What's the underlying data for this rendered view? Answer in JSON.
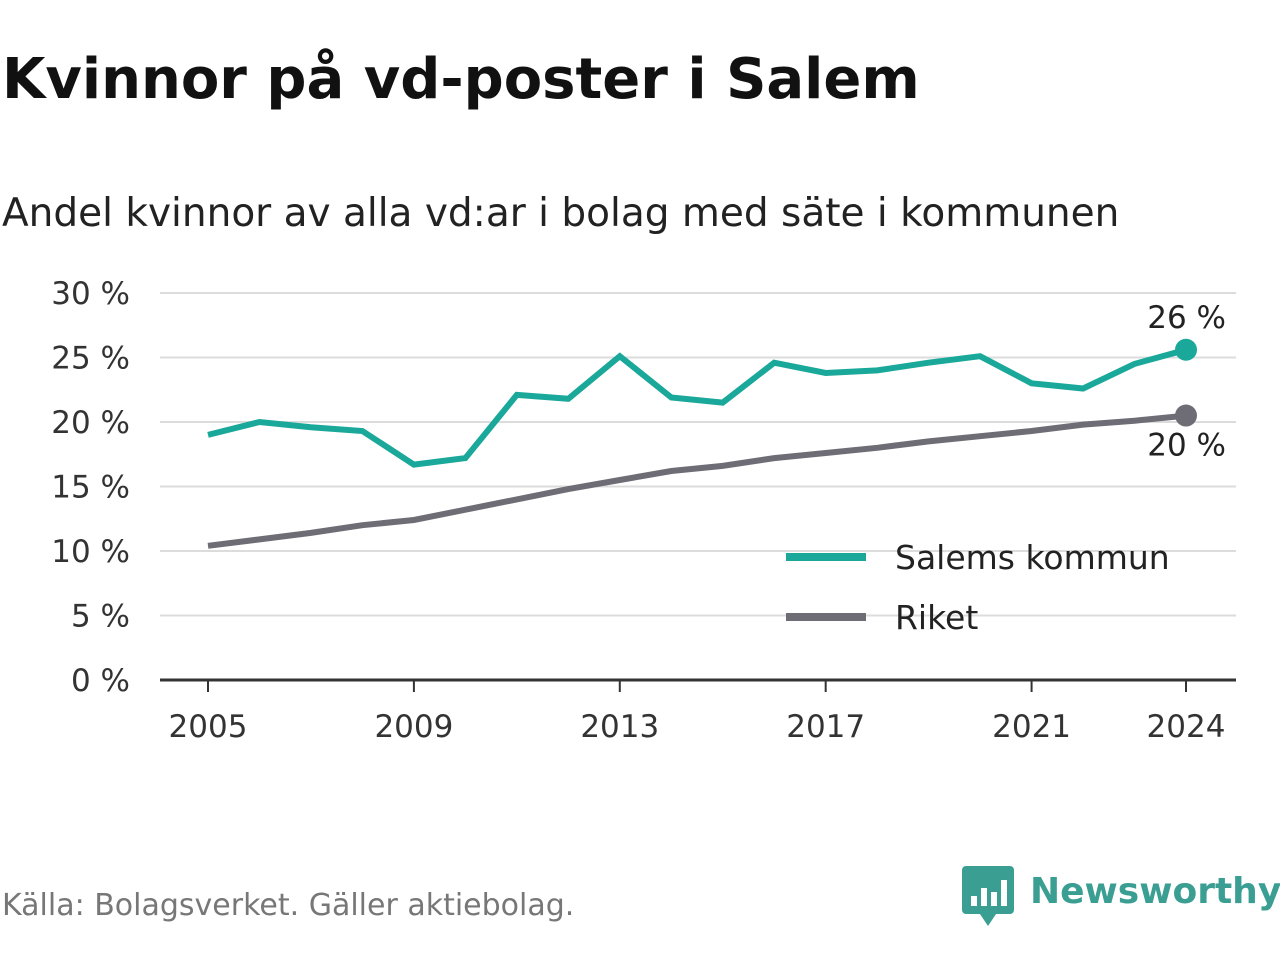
{
  "title": "Kvinnor på vd-poster i Salem",
  "subtitle": "Andel kvinnor av alla vd:ar i bolag med säte i kommunen",
  "source": "Källa: Bolagsverket. Gäller aktiebolag.",
  "brand": {
    "name": "Newsworthy",
    "icon": "newsworthy-logo-icon",
    "color": "#3a9e92"
  },
  "chart_data": {
    "type": "line",
    "x": [
      2005,
      2006,
      2007,
      2008,
      2009,
      2010,
      2011,
      2012,
      2013,
      2014,
      2015,
      2016,
      2017,
      2018,
      2019,
      2020,
      2021,
      2022,
      2023,
      2024
    ],
    "series": [
      {
        "name": "Salems kommun",
        "color": "#1aa89a",
        "values": [
          19.0,
          20.0,
          19.6,
          19.3,
          16.7,
          17.2,
          22.1,
          21.8,
          25.1,
          21.9,
          21.5,
          24.6,
          23.8,
          24.0,
          24.6,
          25.1,
          23.0,
          22.6,
          24.5,
          25.6
        ],
        "end_label": "26 %"
      },
      {
        "name": "Riket",
        "color": "#6e6d75",
        "values": [
          10.4,
          10.9,
          11.4,
          12.0,
          12.4,
          13.2,
          14.0,
          14.8,
          15.5,
          16.2,
          16.6,
          17.2,
          17.6,
          18.0,
          18.5,
          18.9,
          19.3,
          19.8,
          20.1,
          20.5
        ],
        "end_label": "20 %"
      }
    ],
    "x_ticks": [
      2005,
      2009,
      2013,
      2017,
      2021,
      2024
    ],
    "x_tick_labels": [
      "2005",
      "2009",
      "2013",
      "2017",
      "2021",
      "2024"
    ],
    "y_ticks": [
      0,
      5,
      10,
      15,
      20,
      25,
      30
    ],
    "y_tick_labels": [
      "0 %",
      "5 %",
      "10 %",
      "15 %",
      "20 %",
      "25 %",
      "30 %"
    ],
    "ylim": [
      0,
      30
    ],
    "xlabel": "",
    "ylabel": "",
    "grid": "horizontal",
    "legend": "bottom-right"
  }
}
